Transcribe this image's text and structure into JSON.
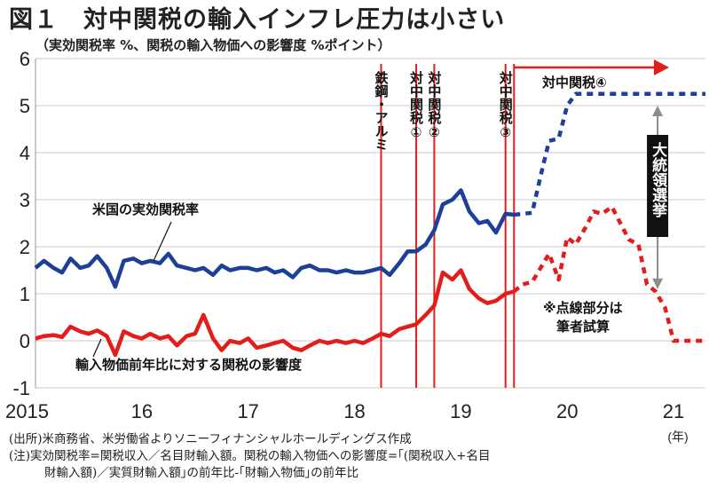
{
  "title": "図１　対中関税の輸入インフレ圧力は小さい",
  "subtitle": "（実効関税率 %、関税の輸入物価への影響度 %ポイント）",
  "notes": {
    "source": "(出所)米商務省、米労働省よりソニーフィナンシャルホールディングス作成",
    "note_line1": "(注)実効関税率=関税収入／名目財輸入額。関税の輸入物価への影響度=｢(関税収入+名目",
    "note_line2": "財輸入額)／実質財輸入額｣の前年比-｢財輸入物価｣の前年比"
  },
  "colors": {
    "blue": "#1e3f99",
    "red": "#e31c1c",
    "grid": "#c8c8c8",
    "event": "#e31c1c",
    "arrow_gray": "#8c8c8c",
    "callout_bg": "#111111"
  },
  "chart_data": {
    "type": "line",
    "title": "図１　対中関税の輸入インフレ圧力は小さい",
    "ylabel": "実効関税率 %、関税の輸入物価への影響度 %ポイント",
    "xlabel": "(年)",
    "ylim": [
      -1,
      6
    ],
    "yticks": [
      "-1",
      "0",
      "1",
      "2",
      "3",
      "4",
      "5",
      "6"
    ],
    "xlim": [
      2015.0,
      2021.3
    ],
    "xticks": [
      {
        "x": 2015.0,
        "label": "2015"
      },
      {
        "x": 2016.0,
        "label": "16"
      },
      {
        "x": 2017.0,
        "label": "17"
      },
      {
        "x": 2018.0,
        "label": "18"
      },
      {
        "x": 2019.0,
        "label": "19"
      },
      {
        "x": 2020.0,
        "label": "20"
      },
      {
        "x": 2021.0,
        "label": "21"
      }
    ],
    "x_unit_label": "(年)",
    "grid": true,
    "series": [
      {
        "name": "米国の実効関税率",
        "color_key": "blue",
        "style": "solid",
        "points": [
          [
            2015.0,
            1.55
          ],
          [
            2015.08,
            1.7
          ],
          [
            2015.17,
            1.55
          ],
          [
            2015.25,
            1.45
          ],
          [
            2015.33,
            1.75
          ],
          [
            2015.42,
            1.55
          ],
          [
            2015.5,
            1.6
          ],
          [
            2015.58,
            1.8
          ],
          [
            2015.67,
            1.55
          ],
          [
            2015.75,
            1.15
          ],
          [
            2015.83,
            1.7
          ],
          [
            2015.92,
            1.75
          ],
          [
            2016.0,
            1.65
          ],
          [
            2016.08,
            1.7
          ],
          [
            2016.17,
            1.65
          ],
          [
            2016.25,
            1.85
          ],
          [
            2016.33,
            1.6
          ],
          [
            2016.42,
            1.55
          ],
          [
            2016.5,
            1.5
          ],
          [
            2016.58,
            1.55
          ],
          [
            2016.67,
            1.4
          ],
          [
            2016.75,
            1.6
          ],
          [
            2016.83,
            1.5
          ],
          [
            2016.92,
            1.55
          ],
          [
            2017.0,
            1.55
          ],
          [
            2017.08,
            1.5
          ],
          [
            2017.17,
            1.55
          ],
          [
            2017.25,
            1.45
          ],
          [
            2017.33,
            1.5
          ],
          [
            2017.42,
            1.35
          ],
          [
            2017.5,
            1.55
          ],
          [
            2017.58,
            1.6
          ],
          [
            2017.67,
            1.5
          ],
          [
            2017.75,
            1.5
          ],
          [
            2017.83,
            1.45
          ],
          [
            2017.92,
            1.5
          ],
          [
            2018.0,
            1.45
          ],
          [
            2018.08,
            1.45
          ],
          [
            2018.17,
            1.5
          ],
          [
            2018.25,
            1.55
          ],
          [
            2018.33,
            1.4
          ],
          [
            2018.42,
            1.65
          ],
          [
            2018.5,
            1.9
          ],
          [
            2018.58,
            1.9
          ],
          [
            2018.67,
            2.05
          ],
          [
            2018.75,
            2.35
          ],
          [
            2018.83,
            2.9
          ],
          [
            2018.92,
            3.0
          ],
          [
            2019.0,
            3.2
          ],
          [
            2019.08,
            2.75
          ],
          [
            2019.17,
            2.5
          ],
          [
            2019.25,
            2.55
          ],
          [
            2019.33,
            2.3
          ],
          [
            2019.42,
            2.7
          ],
          [
            2019.5,
            2.68
          ]
        ]
      },
      {
        "name": "米国の実効関税率（筆者試算）",
        "color_key": "blue",
        "style": "dashed",
        "points": [
          [
            2019.5,
            2.68
          ],
          [
            2019.58,
            2.7
          ],
          [
            2019.67,
            2.72
          ],
          [
            2019.75,
            3.5
          ],
          [
            2019.83,
            4.25
          ],
          [
            2019.92,
            4.3
          ],
          [
            2020.0,
            5.0
          ],
          [
            2020.08,
            5.25
          ],
          [
            2020.17,
            5.25
          ],
          [
            2020.5,
            5.25
          ],
          [
            2021.0,
            5.25
          ],
          [
            2021.3,
            5.25
          ]
        ]
      },
      {
        "name": "輸入物価前年比に対する関税の影響度",
        "color_key": "red",
        "style": "solid",
        "points": [
          [
            2015.0,
            0.05
          ],
          [
            2015.08,
            0.1
          ],
          [
            2015.17,
            0.12
          ],
          [
            2015.25,
            0.08
          ],
          [
            2015.33,
            0.3
          ],
          [
            2015.42,
            0.2
          ],
          [
            2015.5,
            0.15
          ],
          [
            2015.58,
            0.22
          ],
          [
            2015.67,
            0.1
          ],
          [
            2015.75,
            -0.3
          ],
          [
            2015.83,
            0.2
          ],
          [
            2015.92,
            0.1
          ],
          [
            2016.0,
            0.05
          ],
          [
            2016.08,
            0.15
          ],
          [
            2016.17,
            0.05
          ],
          [
            2016.25,
            0.1
          ],
          [
            2016.33,
            -0.1
          ],
          [
            2016.42,
            0.1
          ],
          [
            2016.5,
            0.15
          ],
          [
            2016.58,
            0.55
          ],
          [
            2016.67,
            0.05
          ],
          [
            2016.75,
            -0.2
          ],
          [
            2016.83,
            0.0
          ],
          [
            2016.92,
            -0.05
          ],
          [
            2017.0,
            0.05
          ],
          [
            2017.08,
            -0.15
          ],
          [
            2017.17,
            -0.1
          ],
          [
            2017.25,
            -0.05
          ],
          [
            2017.33,
            0.0
          ],
          [
            2017.42,
            -0.15
          ],
          [
            2017.5,
            -0.2
          ],
          [
            2017.58,
            -0.1
          ],
          [
            2017.67,
            0.0
          ],
          [
            2017.75,
            -0.05
          ],
          [
            2017.83,
            0.0
          ],
          [
            2017.92,
            -0.05
          ],
          [
            2018.0,
            0.0
          ],
          [
            2018.08,
            -0.05
          ],
          [
            2018.17,
            0.05
          ],
          [
            2018.25,
            0.15
          ],
          [
            2018.33,
            0.1
          ],
          [
            2018.42,
            0.25
          ],
          [
            2018.5,
            0.3
          ],
          [
            2018.58,
            0.35
          ],
          [
            2018.67,
            0.55
          ],
          [
            2018.75,
            0.75
          ],
          [
            2018.83,
            1.45
          ],
          [
            2018.92,
            1.3
          ],
          [
            2019.0,
            1.5
          ],
          [
            2019.08,
            1.1
          ],
          [
            2019.17,
            0.9
          ],
          [
            2019.25,
            0.8
          ],
          [
            2019.33,
            0.85
          ],
          [
            2019.42,
            1.0
          ],
          [
            2019.5,
            1.05
          ]
        ]
      },
      {
        "name": "関税の影響度（筆者試算）",
        "color_key": "red",
        "style": "dashed",
        "points": [
          [
            2019.5,
            1.05
          ],
          [
            2019.58,
            1.2
          ],
          [
            2019.67,
            1.25
          ],
          [
            2019.75,
            1.55
          ],
          [
            2019.83,
            1.85
          ],
          [
            2019.92,
            1.3
          ],
          [
            2020.0,
            2.2
          ],
          [
            2020.08,
            2.05
          ],
          [
            2020.17,
            2.4
          ],
          [
            2020.25,
            2.75
          ],
          [
            2020.33,
            2.7
          ],
          [
            2020.42,
            2.85
          ],
          [
            2020.5,
            2.5
          ],
          [
            2020.58,
            2.15
          ],
          [
            2020.67,
            2.05
          ],
          [
            2020.75,
            1.2
          ],
          [
            2020.83,
            1.05
          ],
          [
            2020.92,
            0.7
          ],
          [
            2021.0,
            0.0
          ],
          [
            2021.1,
            0.0
          ],
          [
            2021.3,
            0.0
          ]
        ]
      }
    ],
    "events": [
      {
        "x": 2018.25,
        "label": "鉄鋼・アルミ"
      },
      {
        "x": 2018.58,
        "label": "対中関税①"
      },
      {
        "x": 2018.75,
        "label": "対中関税②"
      },
      {
        "x": 2019.42,
        "label": "対中関税③"
      },
      {
        "x": 2019.5,
        "label": "対中関税④",
        "arrow": true
      }
    ],
    "annotations": {
      "blue_label": "米国の実効関税率",
      "red_label": "輸入物価前年比に対する関税の影響度",
      "dotted_note_line1": "※点線部分は",
      "dotted_note_line2": "筆者試算",
      "callout": "大統領選挙",
      "callout_arrow": {
        "x": 2020.85,
        "y_from": 5.0,
        "y_to": 1.1
      }
    }
  }
}
